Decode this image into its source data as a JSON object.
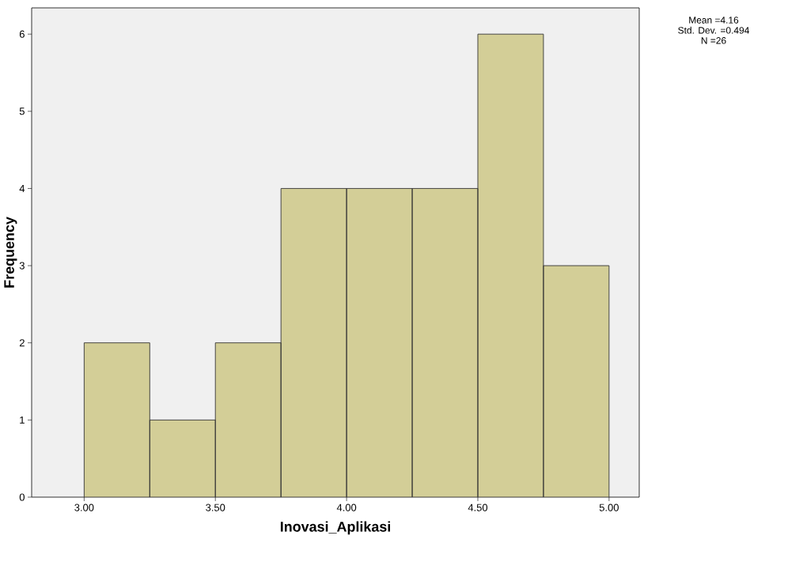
{
  "chart_data": {
    "type": "histogram",
    "xlabel": "Inovasi_Aplikasi",
    "ylabel": "Frequency",
    "bins": [
      3.0,
      3.25,
      3.5,
      3.75,
      4.0,
      4.25,
      4.5,
      4.75,
      5.0
    ],
    "values": [
      2,
      1,
      2,
      4,
      4,
      4,
      6,
      3
    ],
    "color": "#d3ce97",
    "xlim": [
      2.8,
      5.115
    ],
    "ylim": [
      0,
      6.34
    ],
    "xticks": [
      {
        "value": 3.0,
        "label": "3.00"
      },
      {
        "value": 3.5,
        "label": "3.50"
      },
      {
        "value": 4.0,
        "label": "4.00"
      },
      {
        "value": 4.5,
        "label": "4.50"
      },
      {
        "value": 5.0,
        "label": "5.00"
      }
    ],
    "yticks": [
      0,
      1,
      2,
      3,
      4,
      5,
      6
    ],
    "annotations": [
      "Mean =4.16",
      "Std. Dev. =0.494",
      "N =26"
    ],
    "grid": false
  }
}
